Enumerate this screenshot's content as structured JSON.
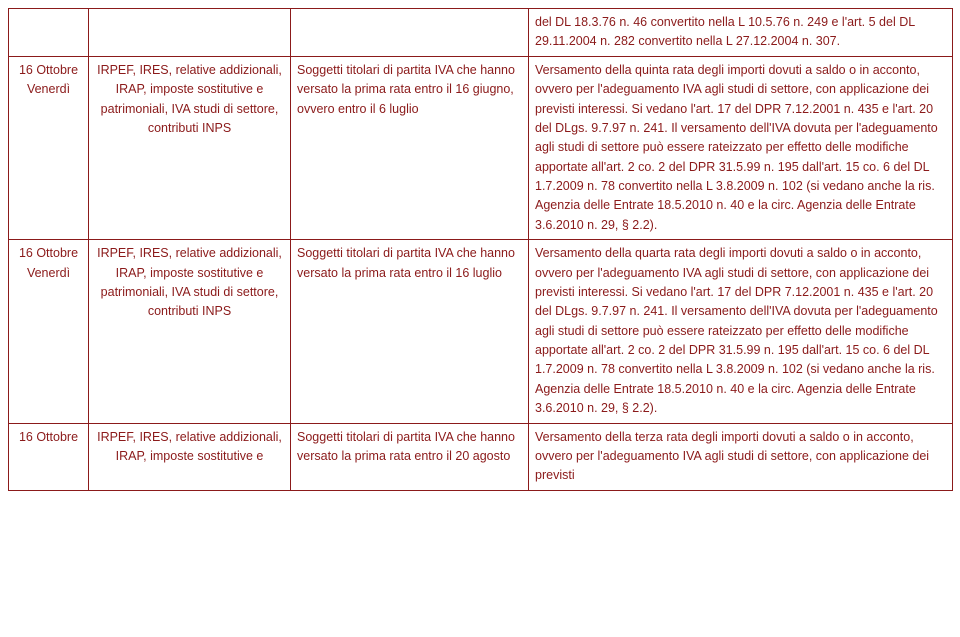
{
  "rows": [
    {
      "date_line1": "",
      "date_line2": "",
      "col2": "",
      "col3": "",
      "col4": "del DL 18.3.76 n. 46 convertito nella L 10.5.76 n. 249 e l'art. 5 del DL 29.11.2004 n. 282 convertito nella L 27.12.2004 n. 307."
    },
    {
      "date_line1": "16 Ottobre",
      "date_line2": "Venerdì",
      "col2": "IRPEF, IRES, relative addizionali, IRAP, imposte sostitutive e patrimoniali, IVA studi di settore, contributi INPS",
      "col3": "Soggetti titolari di partita IVA che hanno versato la prima rata entro il 16 giugno, ovvero entro il 6 luglio",
      "col4": "Versamento della quinta rata degli importi dovuti a saldo o in acconto, ovvero per l'adeguamento IVA agli studi di settore, con applicazione dei previsti interessi. Si vedano l'art. 17 del DPR 7.12.2001 n. 435 e l'art. 20 del DLgs. 9.7.97 n. 241. Il versamento dell'IVA dovuta per l'adeguamento agli studi di settore può essere rateizzato per effetto delle modifiche apportate all'art. 2 co. 2 del DPR 31.5.99 n. 195 dall'art. 15 co. 6 del DL 1.7.2009 n. 78 convertito nella L 3.8.2009 n. 102 (si vedano anche la ris. Agenzia delle Entrate 18.5.2010 n. 40 e la circ. Agenzia delle Entrate 3.6.2010 n. 29, § 2.2)."
    },
    {
      "date_line1": "16 Ottobre",
      "date_line2": "Venerdì",
      "col2": "IRPEF, IRES, relative addizionali, IRAP, imposte sostitutive e patrimoniali, IVA studi di settore, contributi INPS",
      "col3": "Soggetti titolari di partita IVA che hanno versato la prima rata entro il 16 luglio",
      "col4": "Versamento della quarta rata degli importi dovuti a saldo o in acconto, ovvero per l'adeguamento IVA agli studi di settore, con applicazione dei previsti interessi. Si vedano l'art. 17 del DPR 7.12.2001 n. 435 e l'art. 20 del DLgs. 9.7.97 n. 241. Il versamento dell'IVA dovuta per l'adeguamento agli studi di settore può essere rateizzato per effetto delle modifiche apportate all'art. 2 co. 2 del DPR 31.5.99 n. 195 dall'art. 15 co. 6 del DL 1.7.2009 n. 78 convertito nella L 3.8.2009 n. 102 (si vedano anche la ris. Agenzia delle Entrate 18.5.2010 n. 40 e la circ. Agenzia delle Entrate 3.6.2010 n. 29, § 2.2)."
    },
    {
      "date_line1": "16 Ottobre",
      "date_line2": "",
      "col2": "IRPEF, IRES, relative addizionali, IRAP, imposte sostitutive e",
      "col3": "Soggetti titolari di partita IVA che hanno versato la prima rata entro il 20 agosto",
      "col4": "Versamento della terza rata degli importi dovuti a saldo o in acconto, ovvero per l'adeguamento IVA agli studi di settore, con applicazione dei previsti"
    }
  ]
}
